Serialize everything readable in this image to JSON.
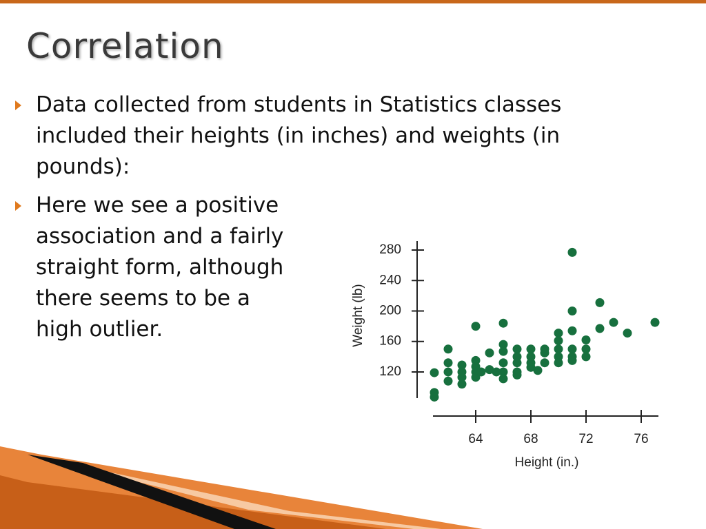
{
  "slide": {
    "title": "Correlation",
    "bullets": [
      "Data collected from students in Statistics classes included their heights (in inches) and weights (in pounds):",
      "Here we see a positive association and a fairly straight form, although there seems to be a high outlier."
    ]
  },
  "chart_data": {
    "type": "scatter",
    "x_label": "Height (in.)",
    "y_label": "Weight (lb)",
    "color": "#17703e",
    "x": [
      61,
      61,
      61,
      62,
      62,
      62,
      62,
      63,
      63,
      63,
      63,
      64,
      64,
      64,
      64,
      64,
      64.4,
      65,
      65,
      65.5,
      66,
      66,
      66,
      66,
      66,
      66,
      67,
      67,
      67,
      67,
      67,
      68,
      68,
      68,
      68,
      68.5,
      69,
      69,
      69,
      70,
      70,
      70,
      70,
      70,
      71,
      71,
      71,
      71,
      71,
      71,
      72,
      72,
      72,
      73,
      73,
      74,
      75,
      77
    ],
    "values": [
      119,
      93,
      87,
      150,
      132,
      120,
      108,
      129,
      120,
      113,
      104,
      180,
      135,
      127,
      120,
      113,
      120,
      145,
      123,
      120,
      184,
      156,
      147,
      132,
      120,
      111,
      150,
      140,
      132,
      120,
      116,
      150,
      140,
      132,
      126,
      122,
      150,
      145,
      132,
      171,
      161,
      150,
      140,
      132,
      277,
      200,
      174,
      150,
      140,
      135,
      162,
      150,
      140,
      211,
      177,
      185,
      171,
      185
    ],
    "xlim": [
      60.9,
      77.25
    ],
    "ylim": [
      85.6,
      291.8
    ],
    "xticks": [
      64,
      68,
      72,
      76
    ],
    "yticks": [
      120,
      160,
      200,
      240,
      280
    ]
  }
}
